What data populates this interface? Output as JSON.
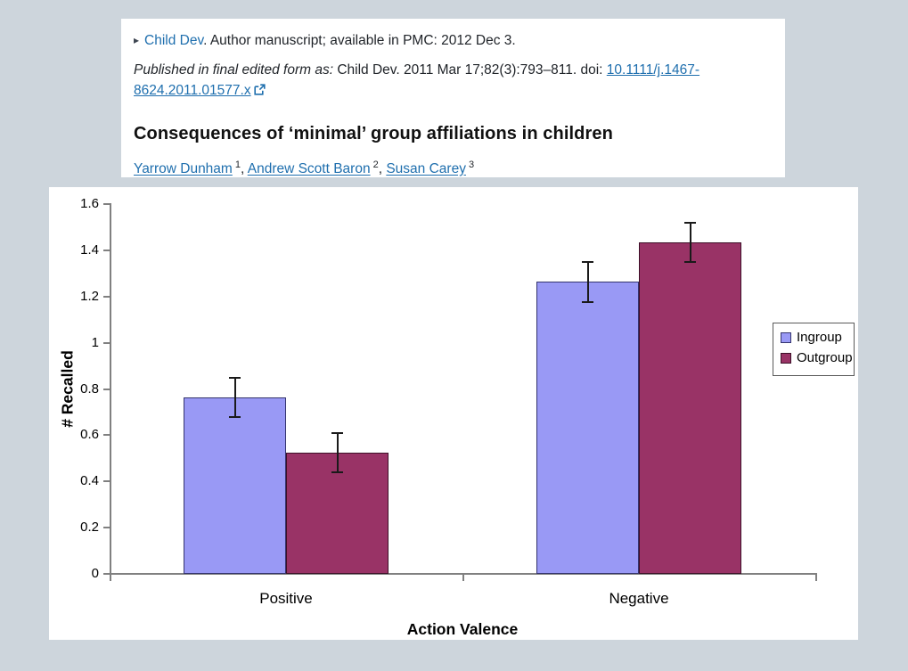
{
  "page": {
    "background": "#cdd5dc"
  },
  "header": {
    "bullet": "▸",
    "journal_link": "Child Dev",
    "line1_rest": ". Author manuscript; available in PMC: 2012 Dec 3.",
    "published_prefix": "Published in final edited form as:",
    "published_citation": " Child Dev. 2011 Mar 17;82(3):793–811. doi: ",
    "doi_link": "10.1111/j.1467-8624.2011.01577.x",
    "title": "Consequences of ‘minimal’ group affiliations in children",
    "authors": [
      {
        "name": "Yarrow Dunham",
        "sup": "1"
      },
      {
        "name": "Andrew Scott Baron",
        "sup": "2"
      },
      {
        "name": "Susan Carey",
        "sup": "3"
      }
    ],
    "link_color": "#1f6fae"
  },
  "chart_data": {
    "type": "bar",
    "title": "",
    "categories": [
      "Positive",
      "Negative"
    ],
    "series": [
      {
        "name": "Ingroup",
        "color": "#9999f5",
        "border_color": "#34346e",
        "values": [
          0.76,
          1.26
        ],
        "errors": [
          0.09,
          0.09
        ]
      },
      {
        "name": "Outgroup",
        "color": "#993366",
        "border_color": "#3d1028",
        "values": [
          0.52,
          1.43
        ],
        "errors": [
          0.09,
          0.09
        ]
      }
    ],
    "xlabel": "Action Valence",
    "ylabel": "# Recalled",
    "ylim": [
      0,
      1.6
    ],
    "ytick_step": 0.2,
    "ytick_labels": [
      "0",
      "0.2",
      "0.4",
      "0.6",
      "0.8",
      "1",
      "1.2",
      "1.4",
      "1.6"
    ],
    "legend_position": "right",
    "legend_entries": [
      "Ingroup",
      "Outgroup"
    ],
    "grid": false,
    "error_bar_color": "#1a1a1a",
    "axis_color": "#808080"
  }
}
